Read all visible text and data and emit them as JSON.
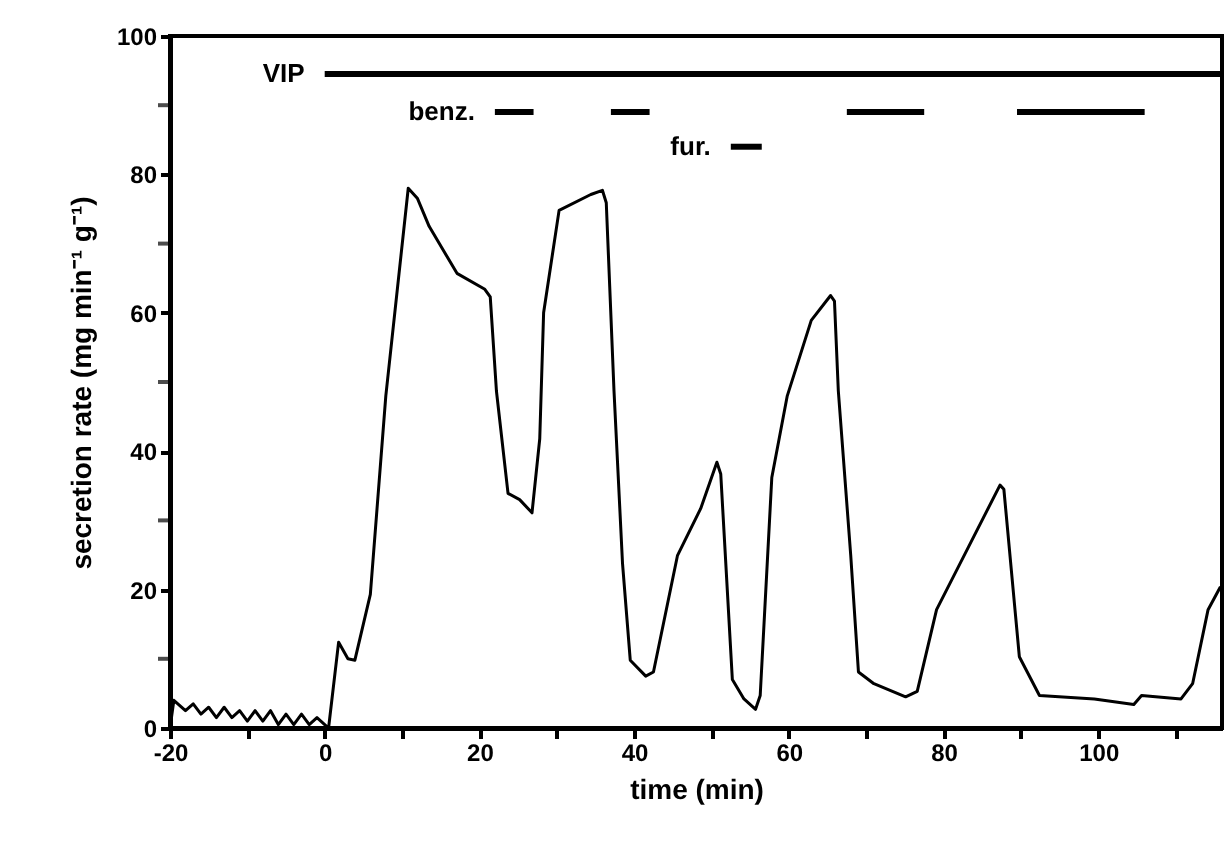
{
  "chart_data": {
    "type": "line",
    "xlabel": "time  (min)",
    "ylabel": "secretion rate  (mg min⁻¹ g⁻¹)",
    "xlim": [
      -20,
      116
    ],
    "ylim": [
      0,
      100
    ],
    "xticks": [
      -20,
      {
        "value": -10,
        "label": null
      },
      0,
      {
        "value": 10,
        "label": null
      },
      20,
      {
        "value": 30,
        "label": null
      },
      40,
      {
        "value": 50,
        "label": null
      },
      60,
      {
        "value": 70,
        "label": null
      },
      80,
      {
        "value": 90,
        "label": null
      },
      100,
      {
        "value": 110,
        "label": null
      }
    ],
    "yticks": [
      0,
      {
        "value": 10,
        "label": null
      },
      20,
      {
        "value": 30,
        "label": null
      },
      40,
      {
        "value": 50,
        "label": null
      },
      60,
      {
        "value": 70,
        "label": null
      },
      80,
      {
        "value": 90,
        "label": null
      },
      100
    ],
    "grid": false,
    "marker": "none",
    "line_style": "solid",
    "series": [
      {
        "color": "#000000",
        "x": [
          -20,
          -19.5,
          -18,
          -17,
          -16,
          -15,
          -14,
          -13,
          -12,
          -11,
          -10,
          -9,
          -8,
          -7,
          -6,
          -5,
          -4,
          -3,
          -2,
          -1,
          0,
          0.5,
          1.8,
          3,
          3.9,
          5.9,
          7.9,
          10.8,
          12,
          13.5,
          17.1,
          20.7,
          21.4,
          22.2,
          23.7,
          25.2,
          26.8,
          27.8,
          28.3,
          30.3,
          34.4,
          35.9,
          36.4,
          37.4,
          38.5,
          39.5,
          41.5,
          42.5,
          45.6,
          48.6,
          50.7,
          51.2,
          52.7,
          54.2,
          55.7,
          56.3,
          57.8,
          59.8,
          62.9,
          65.4,
          65.9,
          66.4,
          68,
          69,
          71,
          75.1,
          76.6,
          79.1,
          83.2,
          87.3,
          87.8,
          89.8,
          92.4,
          99.5,
          104.6,
          105.6,
          110.7,
          112.2,
          114.2,
          115.8
        ],
        "values": [
          0,
          4,
          2.5,
          3.5,
          2,
          3,
          1.5,
          3,
          1.5,
          2.5,
          1,
          2.5,
          1,
          2.5,
          0.5,
          2,
          0.5,
          2,
          0.5,
          1.5,
          0.5,
          0,
          12.4,
          10,
          9.8,
          19.3,
          48,
          78,
          76.5,
          72.5,
          65.7,
          63.4,
          62.3,
          48.7,
          33.9,
          33,
          31.1,
          41.8,
          60,
          74.8,
          77.1,
          77.7,
          75.9,
          48.7,
          23.8,
          9.8,
          7.5,
          8.1,
          24.9,
          31.7,
          38.4,
          36.7,
          7,
          4.2,
          2.7,
          4.7,
          36.2,
          48,
          58.9,
          62.5,
          61.7,
          48.7,
          25,
          8.1,
          6.4,
          4.5,
          5.3,
          17.1,
          26.1,
          35.1,
          34.5,
          10.3,
          4.7,
          4.2,
          3.4,
          4.7,
          4.2,
          6.4,
          17.1,
          20.4
        ]
      },
      {
        "name": "VIP",
        "color": "#000000",
        "x": [
          0,
          116
        ],
        "values": [
          94.5,
          94.5
        ]
      },
      {
        "name": "benz.",
        "color": "#000000",
        "x": [
          22,
          27,
          32,
          37,
          42,
          55,
          67.5,
          77.5,
          83,
          89.5,
          106
        ],
        "values": [
          89,
          89,
          null,
          89,
          89,
          null,
          89,
          89,
          null,
          89,
          89
        ]
      },
      {
        "name": "fur.",
        "color": "#000000",
        "x": [
          52.5,
          56.5
        ],
        "values": [
          84,
          84
        ]
      }
    ]
  }
}
